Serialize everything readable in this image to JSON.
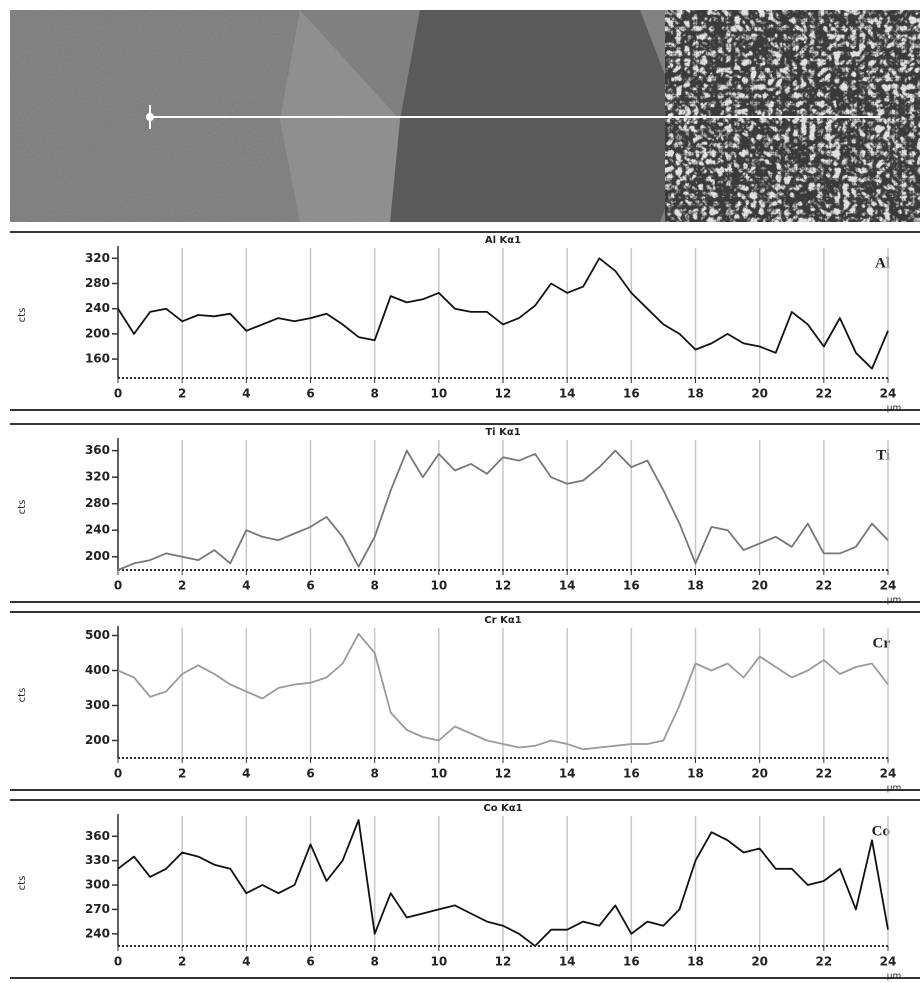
{
  "chart_data": [
    {
      "type": "line",
      "title": "Al Kα1",
      "label": "Al",
      "ylabel": "cts",
      "xlabel": "µm",
      "color": "#111111",
      "grid": "x",
      "x": [
        0,
        0.5,
        1,
        1.5,
        2,
        2.5,
        3,
        3.5,
        4,
        4.5,
        5,
        5.5,
        6,
        6.5,
        7,
        7.5,
        8,
        8.5,
        9,
        9.5,
        10,
        10.5,
        11,
        11.5,
        12,
        12.5,
        13,
        13.5,
        14,
        14.5,
        15,
        15.5,
        16,
        16.5,
        17,
        17.5,
        18,
        18.5,
        19,
        19.5,
        20,
        20.5,
        21,
        21.5,
        22,
        22.5,
        23,
        23.5,
        24
      ],
      "values": [
        240,
        200,
        235,
        240,
        220,
        230,
        228,
        232,
        205,
        215,
        225,
        220,
        225,
        232,
        215,
        195,
        190,
        260,
        250,
        255,
        265,
        240,
        235,
        235,
        215,
        225,
        245,
        280,
        265,
        275,
        320,
        300,
        265,
        240,
        215,
        200,
        175,
        185,
        200,
        185,
        180,
        170,
        235,
        215,
        180,
        225,
        170,
        145,
        205
      ],
      "xlim": [
        0,
        24
      ],
      "xticks": [
        0,
        2,
        4,
        6,
        8,
        10,
        12,
        14,
        16,
        18,
        20,
        22,
        24
      ],
      "ylim": [
        130,
        330
      ],
      "yticks": [
        160,
        200,
        240,
        280,
        320
      ]
    },
    {
      "type": "line",
      "title": "Ti Kα1",
      "label": "Ti",
      "ylabel": "cts",
      "xlabel": "µm",
      "color": "#777777",
      "grid": "x",
      "x": [
        0,
        0.5,
        1,
        1.5,
        2,
        2.5,
        3,
        3.5,
        4,
        4.5,
        5,
        5.5,
        6,
        6.5,
        7,
        7.5,
        8,
        8.5,
        9,
        9.5,
        10,
        10.5,
        11,
        11.5,
        12,
        12.5,
        13,
        13.5,
        14,
        14.5,
        15,
        15.5,
        16,
        16.5,
        17,
        17.5,
        18,
        18.5,
        19,
        19.5,
        20,
        20.5,
        21,
        21.5,
        22,
        22.5,
        23,
        23.5,
        24
      ],
      "values": [
        180,
        190,
        195,
        205,
        200,
        195,
        210,
        190,
        240,
        230,
        225,
        235,
        245,
        260,
        230,
        185,
        230,
        300,
        360,
        320,
        355,
        330,
        340,
        325,
        350,
        345,
        355,
        320,
        310,
        315,
        335,
        360,
        335,
        345,
        300,
        250,
        190,
        245,
        240,
        210,
        220,
        230,
        215,
        250,
        205,
        205,
        215,
        250,
        225
      ],
      "xlim": [
        0,
        24
      ],
      "xticks": [
        0,
        2,
        4,
        6,
        8,
        10,
        12,
        14,
        16,
        18,
        20,
        22,
        24
      ],
      "ylim": [
        180,
        370
      ],
      "yticks": [
        200,
        240,
        280,
        320,
        360
      ]
    },
    {
      "type": "line",
      "title": "Cr Kα1",
      "label": "Cr",
      "ylabel": "cts",
      "xlabel": "µm",
      "color": "#9a9a9a",
      "grid": "x",
      "x": [
        0,
        0.5,
        1,
        1.5,
        2,
        2.5,
        3,
        3.5,
        4,
        4.5,
        5,
        5.5,
        6,
        6.5,
        7,
        7.5,
        8,
        8.5,
        9,
        9.5,
        10,
        10.5,
        11,
        11.5,
        12,
        12.5,
        13,
        13.5,
        14,
        14.5,
        15,
        15.5,
        16,
        16.5,
        17,
        17.5,
        18,
        18.5,
        19,
        19.5,
        20,
        20.5,
        21,
        21.5,
        22,
        22.5,
        23,
        23.5,
        24
      ],
      "values": [
        400,
        380,
        325,
        340,
        390,
        415,
        390,
        360,
        340,
        320,
        350,
        360,
        365,
        380,
        420,
        505,
        450,
        280,
        230,
        210,
        200,
        240,
        220,
        200,
        190,
        180,
        185,
        200,
        190,
        175,
        180,
        185,
        190,
        190,
        200,
        300,
        420,
        400,
        420,
        380,
        440,
        410,
        380,
        400,
        430,
        390,
        410,
        420,
        360
      ],
      "xlim": [
        0,
        24
      ],
      "xticks": [
        0,
        2,
        4,
        6,
        8,
        10,
        12,
        14,
        16,
        18,
        20,
        22,
        24
      ],
      "ylim": [
        150,
        510
      ],
      "yticks": [
        200,
        300,
        400,
        500
      ]
    },
    {
      "type": "line",
      "title": "Co Kα1",
      "label": "Co",
      "ylabel": "cts",
      "xlabel": "µm",
      "color": "#111111",
      "grid": "x",
      "x": [
        0,
        0.5,
        1,
        1.5,
        2,
        2.5,
        3,
        3.5,
        4,
        4.5,
        5,
        5.5,
        6,
        6.5,
        7,
        7.5,
        8,
        8.5,
        9,
        9.5,
        10,
        10.5,
        11,
        11.5,
        12,
        12.5,
        13,
        13.5,
        14,
        14.5,
        15,
        15.5,
        16,
        16.5,
        17,
        17.5,
        18,
        18.5,
        19,
        19.5,
        20,
        20.5,
        21,
        21.5,
        22,
        22.5,
        23,
        23.5,
        24
      ],
      "values": [
        320,
        335,
        310,
        320,
        340,
        335,
        325,
        320,
        290,
        300,
        290,
        300,
        350,
        305,
        330,
        380,
        240,
        290,
        260,
        265,
        270,
        275,
        265,
        255,
        250,
        240,
        225,
        245,
        245,
        255,
        250,
        275,
        240,
        255,
        250,
        270,
        330,
        365,
        355,
        340,
        345,
        320,
        320,
        300,
        305,
        320,
        270,
        355,
        245
      ],
      "xlim": [
        0,
        24
      ],
      "xticks": [
        0,
        2,
        4,
        6,
        8,
        10,
        12,
        14,
        16,
        18,
        20,
        22,
        24
      ],
      "ylim": [
        225,
        380
      ],
      "yticks": [
        240,
        270,
        300,
        330,
        360
      ]
    }
  ]
}
